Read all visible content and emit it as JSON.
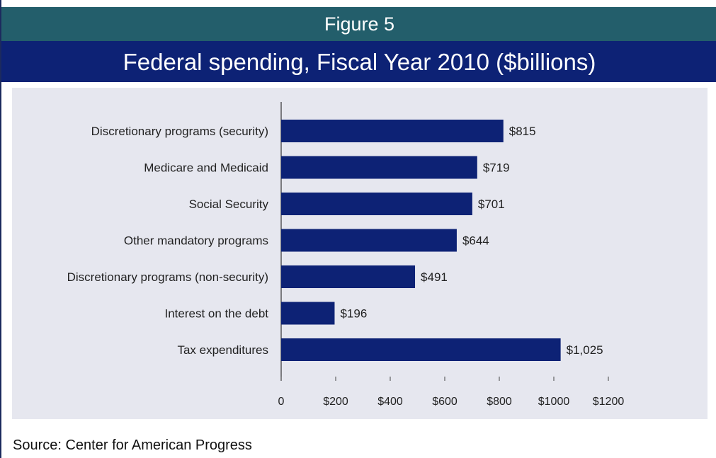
{
  "header": {
    "figure_label": "Figure 5",
    "title": "Federal spending, Fiscal Year 2010 ($billions)"
  },
  "source": "Source: Center for American Progress",
  "colors": {
    "header_bg": "#235e6b",
    "title_bg": "#0d2275",
    "bar": "#0d2275",
    "panel_bg": "#e6e7ef"
  },
  "chart_data": {
    "type": "bar",
    "orientation": "horizontal",
    "categories": [
      "Discretionary programs (security)",
      "Medicare and Medicaid",
      "Social Security",
      "Other mandatory programs",
      "Discretionary programs (non-security)",
      "Interest on the debt",
      "Tax expenditures"
    ],
    "values": [
      815,
      719,
      701,
      644,
      491,
      196,
      1025
    ],
    "data_labels": [
      "$815",
      "$719",
      "$701",
      "$644",
      "$491",
      "$196",
      "$1,025"
    ],
    "xticks": [
      0,
      200,
      400,
      600,
      800,
      1000,
      1200
    ],
    "xtick_labels": [
      "0",
      "$200",
      "$400",
      "$600",
      "$800",
      "$1000",
      "$1200"
    ],
    "xlim": [
      0,
      1200
    ],
    "grid": false,
    "legend": "none"
  }
}
